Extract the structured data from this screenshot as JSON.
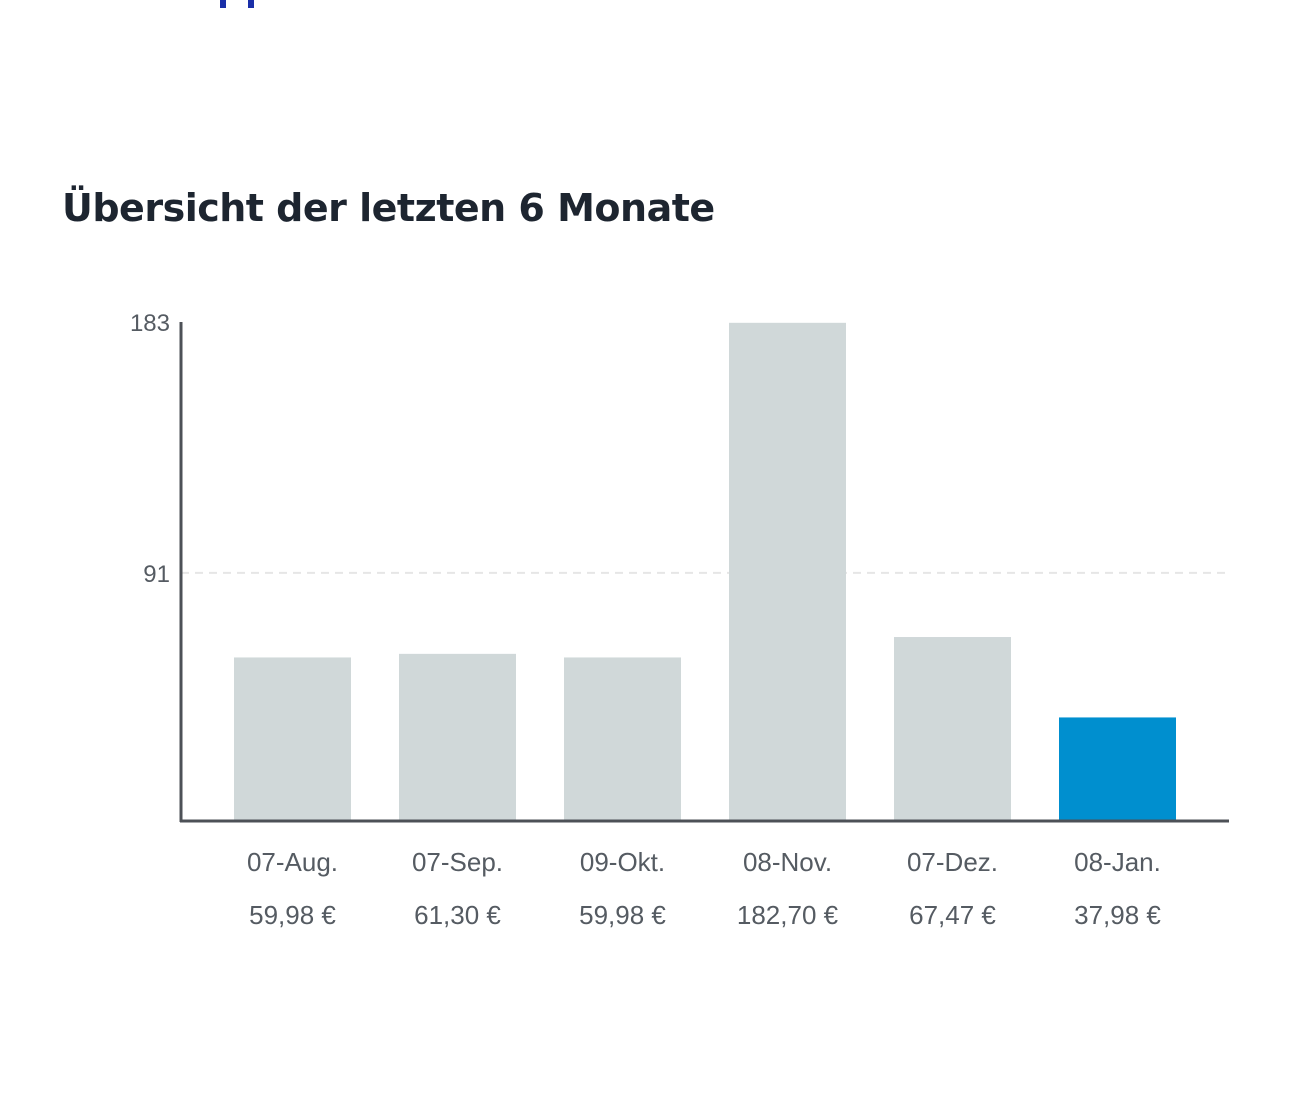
{
  "chart_data": {
    "type": "bar",
    "title": "Übersicht der letzten 6 Monate",
    "categories": [
      "07-Aug.",
      "07-Sep.",
      "09-Okt.",
      "08-Nov.",
      "07-Dez.",
      "08-Jan."
    ],
    "values": [
      59.98,
      61.3,
      59.98,
      182.7,
      67.47,
      37.98
    ],
    "value_labels": [
      "59,98 €",
      "61,30 €",
      "59,98 €",
      "182,70 €",
      "67,47 €",
      "37,98 €"
    ],
    "highlighted_index": 5,
    "yticks": [
      91,
      183
    ],
    "ytick_labels": [
      "91",
      "183"
    ],
    "ylim": [
      0,
      183
    ],
    "xlabel": "",
    "ylabel": "",
    "colors": {
      "bar": "#d0d8d9",
      "highlight": "#008fcf",
      "axis": "#4d5157",
      "grid": "#e6e6e6"
    }
  }
}
